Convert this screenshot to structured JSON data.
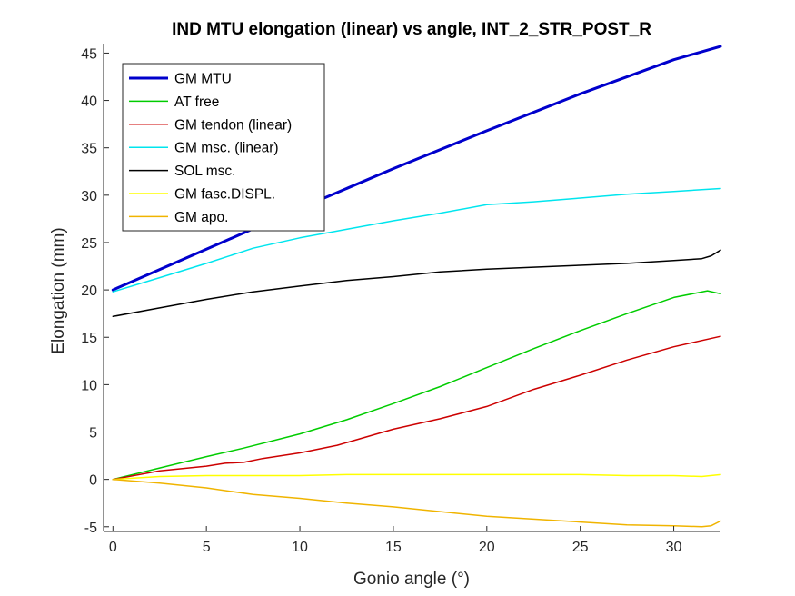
{
  "chart_data": {
    "type": "line",
    "title": "IND MTU elongation (linear) vs angle, INT_2_STR_POST_R",
    "xlabel": "Gonio angle (°)",
    "ylabel": "Elongation (mm)",
    "xlim": [
      -0.5,
      32.5
    ],
    "ylim": [
      -5.5,
      46
    ],
    "xticks": [
      0,
      5,
      10,
      15,
      20,
      25,
      30
    ],
    "yticks": [
      -5,
      0,
      5,
      10,
      15,
      20,
      25,
      30,
      35,
      40,
      45
    ],
    "grid": false,
    "legend_position": "top-left",
    "series": [
      {
        "name": "GM MTU",
        "color": "#0000CC",
        "width": 3,
        "x": [
          0,
          5,
          10,
          15,
          20,
          25,
          30,
          32.5
        ],
        "y": [
          20.0,
          24.3,
          28.6,
          32.8,
          36.8,
          40.7,
          44.3,
          45.7
        ]
      },
      {
        "name": "AT free",
        "color": "#00CC00",
        "width": 1.5,
        "x": [
          0,
          2.5,
          5,
          7,
          10,
          12.5,
          15,
          17.5,
          20,
          22.5,
          25,
          27.5,
          30,
          31.8,
          32.5
        ],
        "y": [
          0,
          1.2,
          2.4,
          3.3,
          4.8,
          6.3,
          8.0,
          9.8,
          11.8,
          13.8,
          15.7,
          17.5,
          19.2,
          19.9,
          19.6
        ]
      },
      {
        "name": "GM tendon (linear)",
        "color": "#CC0000",
        "width": 1.5,
        "x": [
          0,
          2.5,
          5,
          6,
          7,
          8,
          10,
          12,
          15,
          17.5,
          20,
          22.5,
          25,
          27.5,
          30,
          32.5
        ],
        "y": [
          0,
          0.9,
          1.4,
          1.7,
          1.8,
          2.2,
          2.8,
          3.6,
          5.3,
          6.4,
          7.7,
          9.5,
          11.0,
          12.6,
          14.0,
          15.1
        ]
      },
      {
        "name": "GM msc. (linear)",
        "color": "#00E5EE",
        "width": 1.5,
        "x": [
          0,
          2.5,
          5,
          7.5,
          10,
          12.5,
          15,
          17.5,
          20,
          22.5,
          25,
          27.5,
          30,
          32.5
        ],
        "y": [
          19.8,
          21.3,
          22.8,
          24.4,
          25.5,
          26.4,
          27.3,
          28.1,
          29.0,
          29.3,
          29.7,
          30.1,
          30.4,
          30.7
        ]
      },
      {
        "name": "SOL msc.",
        "color": "#000000",
        "width": 1.5,
        "x": [
          0,
          2.5,
          5,
          7.5,
          10,
          12.5,
          15,
          17.5,
          20,
          22.5,
          25,
          27.5,
          30,
          31.5,
          32,
          32.5
        ],
        "y": [
          17.2,
          18.1,
          19.0,
          19.8,
          20.4,
          21.0,
          21.4,
          21.9,
          22.2,
          22.4,
          22.6,
          22.8,
          23.1,
          23.3,
          23.6,
          24.2
        ]
      },
      {
        "name": "GM fasc.DISPL.",
        "color": "#FFFF00",
        "width": 1.5,
        "x": [
          0,
          2.5,
          5,
          7.5,
          10,
          12.5,
          15,
          17.5,
          20,
          22.5,
          25,
          27.5,
          30,
          31.5,
          32.5
        ],
        "y": [
          0,
          0.3,
          0.4,
          0.4,
          0.4,
          0.5,
          0.5,
          0.5,
          0.5,
          0.5,
          0.5,
          0.4,
          0.4,
          0.3,
          0.5
        ]
      },
      {
        "name": "GM apo.",
        "color": "#F0B400",
        "width": 1.5,
        "x": [
          0,
          2.5,
          5,
          7.5,
          10,
          12.5,
          15,
          17.5,
          20,
          22.5,
          25,
          27.5,
          30,
          31.5,
          32,
          32.5
        ],
        "y": [
          0,
          -0.4,
          -0.9,
          -1.6,
          -2.0,
          -2.5,
          -2.9,
          -3.4,
          -3.9,
          -4.2,
          -4.5,
          -4.8,
          -4.9,
          -5.0,
          -4.9,
          -4.4
        ]
      }
    ]
  }
}
